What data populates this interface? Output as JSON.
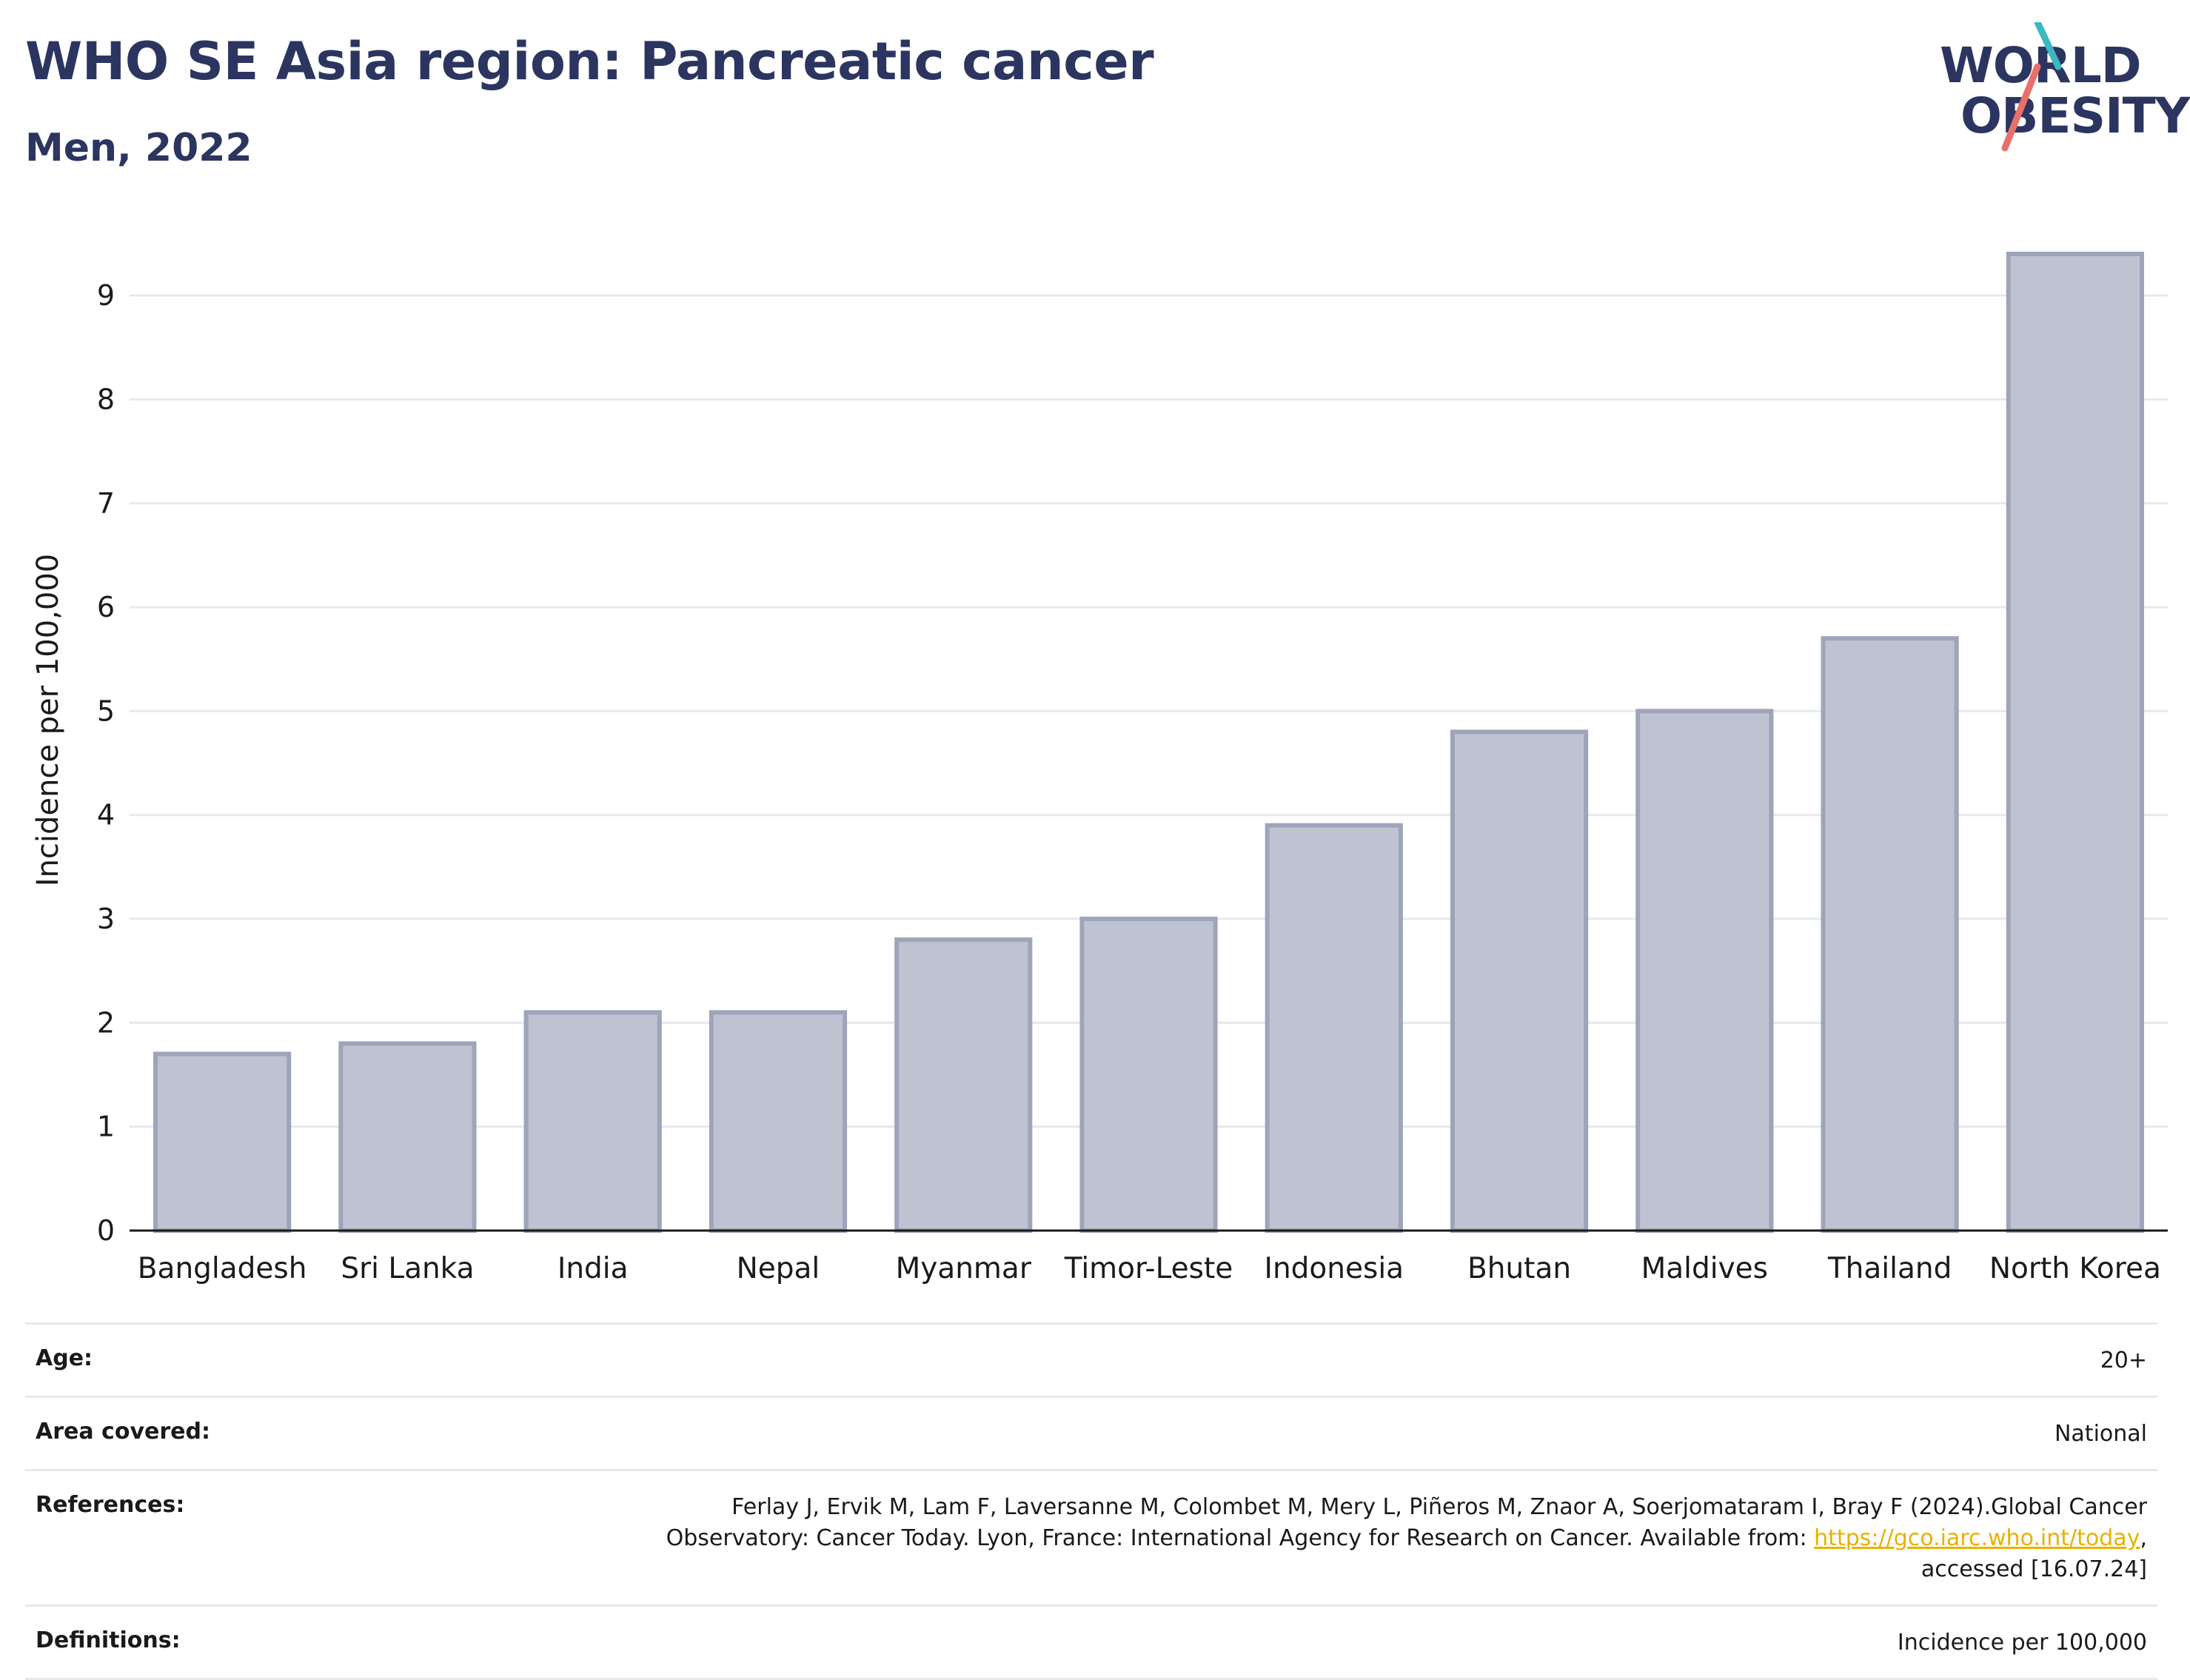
{
  "header": {
    "title": "WHO SE Asia region: Pancreatic cancer",
    "subtitle": "Men, 2022"
  },
  "logo": {
    "line1": "WORLD",
    "line2": "OBESITY"
  },
  "chart_data": {
    "type": "bar",
    "categories": [
      "Bangladesh",
      "Sri Lanka",
      "India",
      "Nepal",
      "Myanmar",
      "Timor-Leste",
      "Indonesia",
      "Bhutan",
      "Maldives",
      "Thailand",
      "North Korea"
    ],
    "values": [
      1.7,
      1.8,
      2.1,
      2.1,
      2.8,
      3.0,
      3.9,
      4.8,
      5.0,
      5.7,
      9.4
    ],
    "ylabel": "Incidence per 100,000",
    "ylim": [
      0,
      9.4
    ],
    "yticks": [
      0,
      1,
      2,
      3,
      4,
      5,
      6,
      7,
      8,
      9
    ],
    "grid": true,
    "bar_color": "#bfc3d1",
    "bar_edge": "#9ea4ba"
  },
  "info": {
    "age_label": "Age:",
    "age_value": "20+",
    "area_label": "Area covered:",
    "area_value": "National",
    "refs_label": "References:",
    "refs_text1": "Ferlay J, Ervik M, Lam F, Laversanne M, Colombet M, Mery L, Piñeros M, Znaor A, Soerjomataram I, Bray F (2024).Global Cancer Observatory: Cancer Today. Lyon, France: International Agency for Research on Cancer. Available from: ",
    "refs_link": "https://gco.iarc.who.int/today",
    "refs_text2": ", accessed [16.07.24]",
    "defs_label": "Definitions:",
    "defs_value": "Incidence per 100,000"
  }
}
